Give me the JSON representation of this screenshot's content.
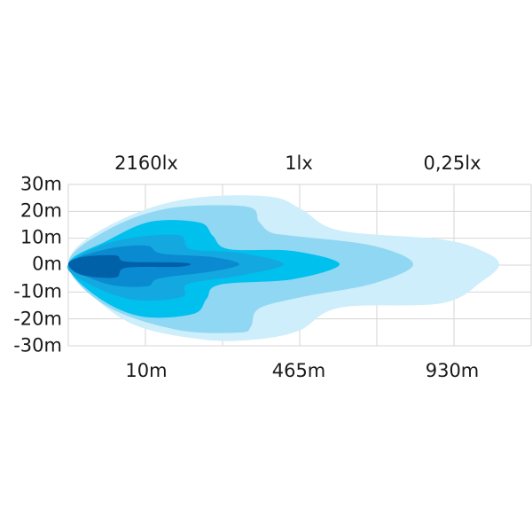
{
  "chart_data": {
    "type": "area",
    "title": "",
    "lux_labels": [
      "2160lx",
      "1lx",
      "0,25lx"
    ],
    "x_tick_labels": [
      "10m",
      "465m",
      "930m"
    ],
    "y_tick_labels": [
      "30m",
      "20m",
      "10m",
      "0m",
      "-10m",
      "-20m",
      "-30m"
    ],
    "ylim": [
      -30,
      30
    ],
    "grid": true,
    "contour_colors": [
      "#cdeefa",
      "#8fd7f3",
      "#00c0ee",
      "#14a8e0",
      "#0a8ad0",
      "#0060a8"
    ]
  }
}
